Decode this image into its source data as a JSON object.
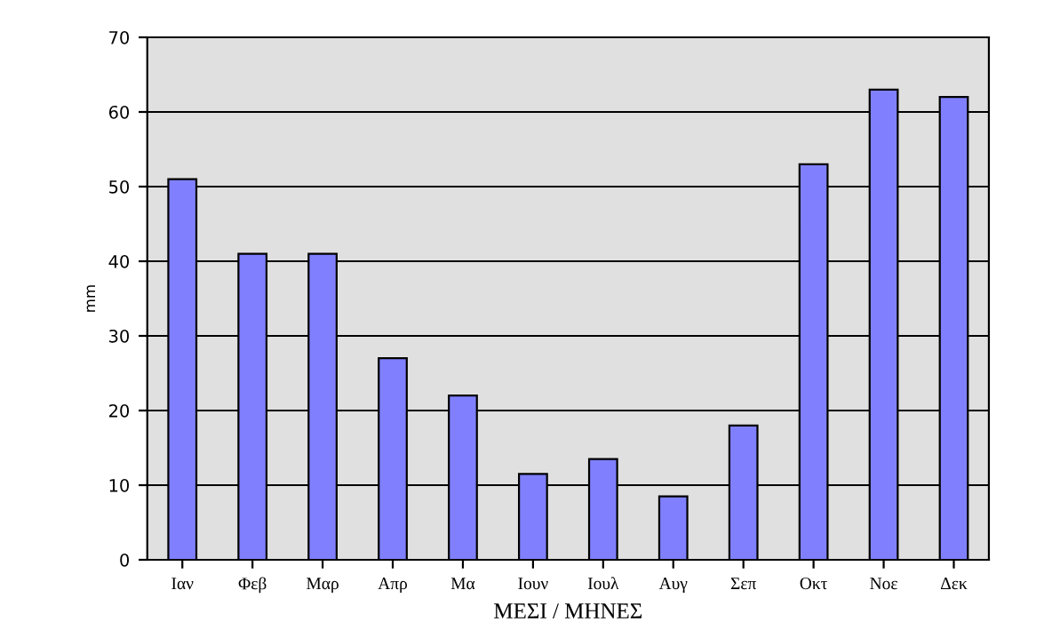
{
  "chart_data": {
    "type": "bar",
    "xlabel": "ΜΕΣΙ / ΜΗΝΕΣ",
    "ylabel": "mm",
    "categories": [
      "Ιαν",
      "Φεβ",
      "Μαρ",
      "Απρ",
      "Μα",
      "Ιουν",
      "Ιουλ",
      "Αυγ",
      "Σεπ",
      "Οκτ",
      "Νοε",
      "Δεκ"
    ],
    "values": [
      51,
      41,
      41,
      27,
      22,
      11.5,
      13.5,
      8.5,
      18,
      53,
      63,
      62
    ],
    "color": "#8080ff",
    "ylim": [
      0,
      70
    ],
    "yticks": [
      0,
      10,
      20,
      30,
      40,
      50,
      60,
      70
    ],
    "grid": "y"
  }
}
